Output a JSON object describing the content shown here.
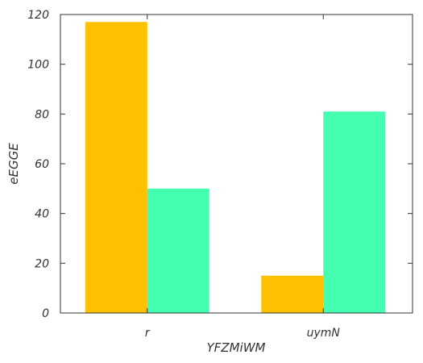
{
  "chart_data": {
    "type": "bar",
    "xlabel": "YFZMiWM",
    "ylabel": "eEGGE",
    "categories": [
      "r",
      "uymN"
    ],
    "series": [
      {
        "values": [
          117,
          15
        ],
        "color": "#ffc000"
      },
      {
        "values": [
          50,
          81
        ],
        "color": "#44ffaf"
      }
    ],
    "ylim": [
      0,
      120
    ],
    "yticks": [
      0,
      20,
      40,
      60,
      80,
      100,
      120
    ],
    "grid": false,
    "legend": "none"
  }
}
